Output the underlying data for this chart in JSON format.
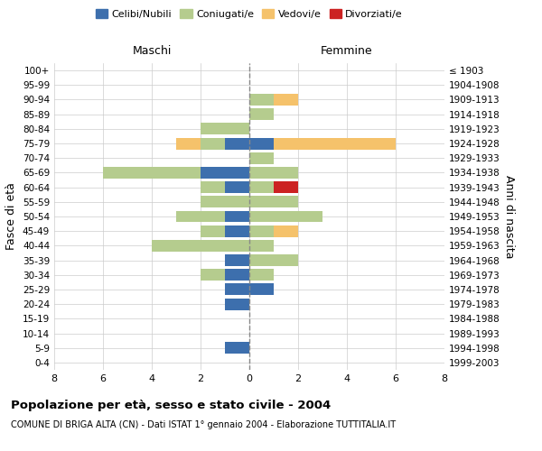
{
  "age_groups": [
    "0-4",
    "5-9",
    "10-14",
    "15-19",
    "20-24",
    "25-29",
    "30-34",
    "35-39",
    "40-44",
    "45-49",
    "50-54",
    "55-59",
    "60-64",
    "65-69",
    "70-74",
    "75-79",
    "80-84",
    "85-89",
    "90-94",
    "95-99",
    "100+"
  ],
  "birth_years": [
    "1999-2003",
    "1994-1998",
    "1989-1993",
    "1984-1988",
    "1979-1983",
    "1974-1978",
    "1969-1973",
    "1964-1968",
    "1959-1963",
    "1954-1958",
    "1949-1953",
    "1944-1948",
    "1939-1943",
    "1934-1938",
    "1929-1933",
    "1924-1928",
    "1919-1923",
    "1914-1918",
    "1909-1913",
    "1904-1908",
    "≤ 1903"
  ],
  "colors": {
    "celibe": "#3d6fad",
    "coniugato": "#b5cc8e",
    "vedovo": "#f5c26b",
    "divorziato": "#cc2222"
  },
  "maschi": {
    "celibe": [
      0,
      1,
      0,
      0,
      1,
      1,
      1,
      1,
      0,
      1,
      1,
      0,
      1,
      2,
      0,
      1,
      0,
      0,
      0,
      0,
      0
    ],
    "coniugato": [
      0,
      0,
      0,
      0,
      0,
      0,
      1,
      0,
      4,
      1,
      2,
      2,
      1,
      4,
      0,
      1,
      2,
      0,
      0,
      0,
      0
    ],
    "vedovo": [
      0,
      0,
      0,
      0,
      0,
      0,
      0,
      0,
      0,
      0,
      0,
      0,
      0,
      0,
      0,
      1,
      0,
      0,
      0,
      0,
      0
    ],
    "divorziato": [
      0,
      0,
      0,
      0,
      0,
      0,
      0,
      0,
      0,
      0,
      0,
      0,
      0,
      0,
      0,
      0,
      0,
      0,
      0,
      0,
      0
    ]
  },
  "femmine": {
    "celibe": [
      0,
      0,
      0,
      0,
      0,
      1,
      0,
      0,
      0,
      0,
      0,
      0,
      0,
      0,
      0,
      1,
      0,
      0,
      0,
      0,
      0
    ],
    "coniugato": [
      0,
      0,
      0,
      0,
      0,
      0,
      1,
      2,
      1,
      1,
      3,
      2,
      1,
      2,
      1,
      0,
      0,
      1,
      1,
      0,
      0
    ],
    "vedovo": [
      0,
      0,
      0,
      0,
      0,
      0,
      0,
      0,
      0,
      1,
      0,
      0,
      0,
      0,
      0,
      5,
      0,
      0,
      1,
      0,
      0
    ],
    "divorziato": [
      0,
      0,
      0,
      0,
      0,
      0,
      0,
      0,
      0,
      0,
      0,
      0,
      1,
      0,
      0,
      0,
      0,
      0,
      0,
      0,
      0
    ]
  },
  "title": "Popolazione per età, sesso e stato civile - 2004",
  "subtitle": "COMUNE DI BRIGA ALTA (CN) - Dati ISTAT 1° gennaio 2004 - Elaborazione TUTTITALIA.IT",
  "xlabel_left": "Maschi",
  "xlabel_right": "Femmine",
  "ylabel_left": "Fasce di età",
  "ylabel_right": "Anni di nascita",
  "xlim": 8,
  "legend_labels": [
    "Celibi/Nubili",
    "Coniugati/e",
    "Vedovi/e",
    "Divorziati/e"
  ],
  "bar_height": 0.8,
  "grid_color": "#cccccc",
  "bg_color": "#ffffff"
}
